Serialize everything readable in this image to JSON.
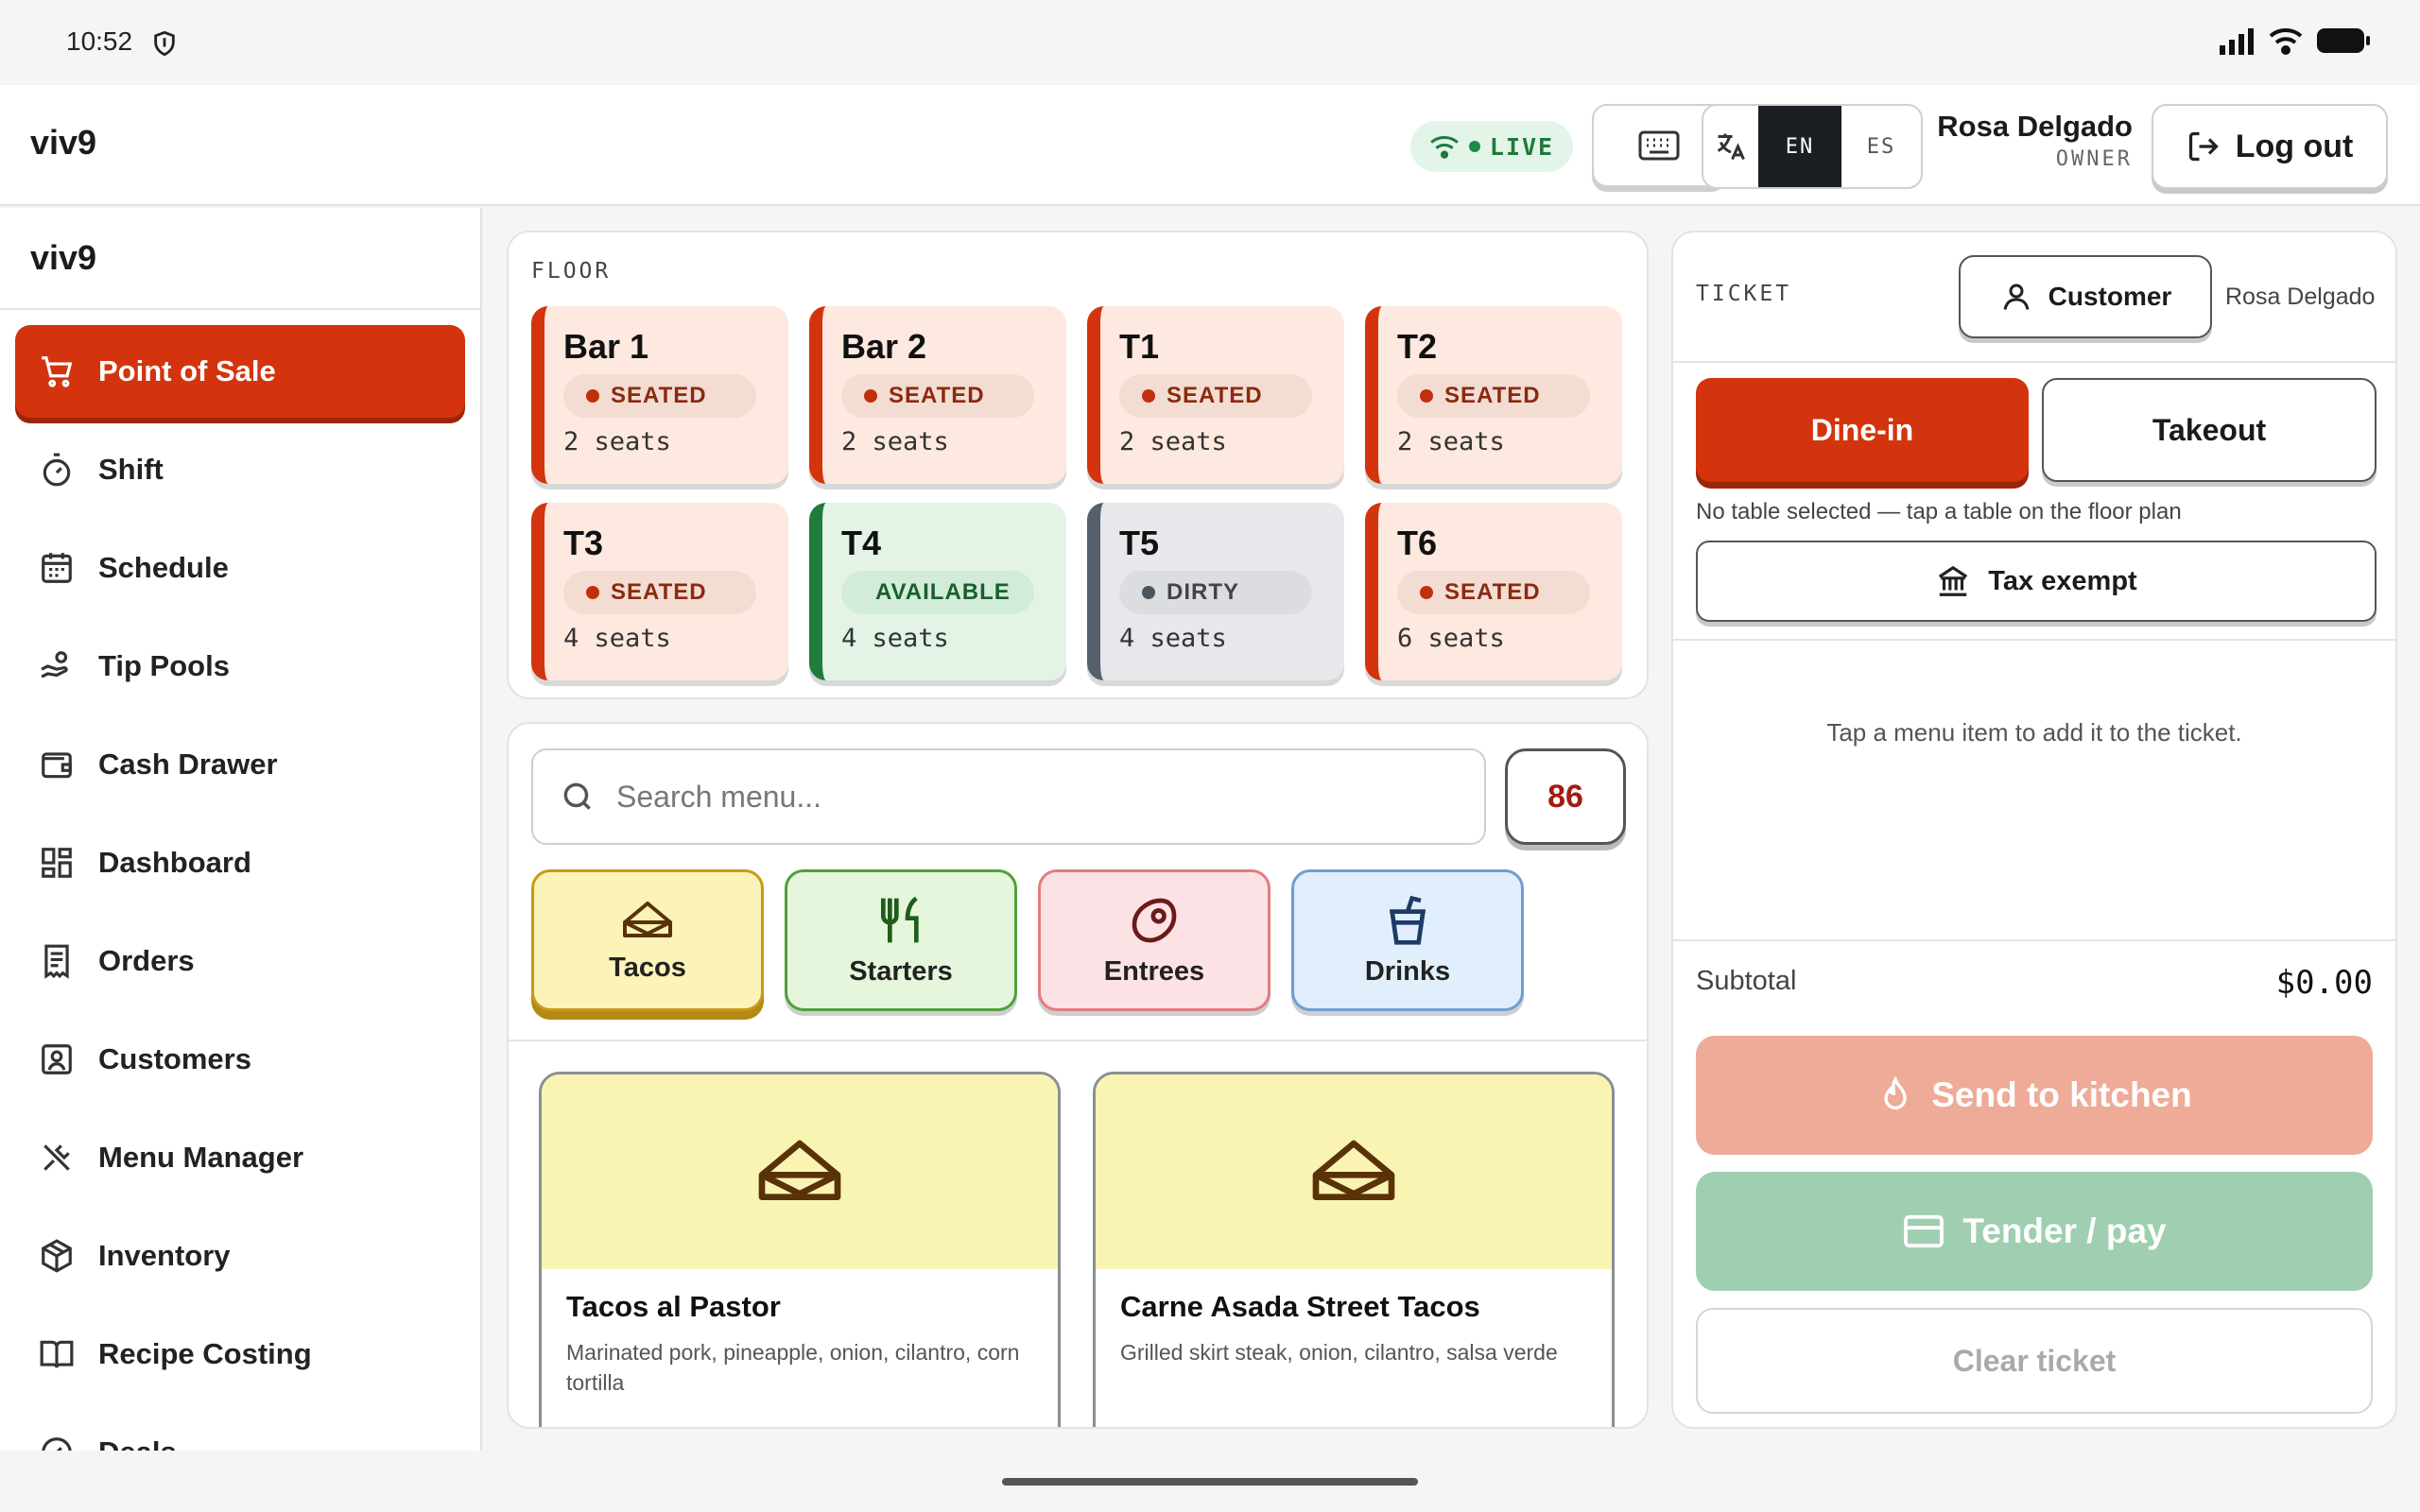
{
  "status_bar": {
    "time": "10:52"
  },
  "header": {
    "brand": "viv9",
    "live_label": "LIVE",
    "lang_en": "EN",
    "lang_es": "ES",
    "user_name": "Rosa Delgado",
    "user_role": "OWNER",
    "logout_label": "Log out"
  },
  "sidebar": {
    "brand": "viv9",
    "items": [
      {
        "label": "Point of Sale",
        "icon": "cart-icon",
        "active": true
      },
      {
        "label": "Shift",
        "icon": "stopwatch-icon"
      },
      {
        "label": "Schedule",
        "icon": "calendar-icon"
      },
      {
        "label": "Tip Pools",
        "icon": "hand-coins-icon"
      },
      {
        "label": "Cash Drawer",
        "icon": "wallet-icon"
      },
      {
        "label": "Dashboard",
        "icon": "dashboard-grid-icon"
      },
      {
        "label": "Orders",
        "icon": "receipt-icon"
      },
      {
        "label": "Customers",
        "icon": "contact-card-icon"
      },
      {
        "label": "Menu Manager",
        "icon": "utensils-crossed-icon"
      },
      {
        "label": "Inventory",
        "icon": "package-icon"
      },
      {
        "label": "Recipe Costing",
        "icon": "book-icon"
      },
      {
        "label": "Deals",
        "icon": "tag-icon"
      }
    ]
  },
  "floor": {
    "label": "FLOOR",
    "tables": [
      {
        "name": "Bar 1",
        "status": "SEATED",
        "seats": "2 seats"
      },
      {
        "name": "Bar 2",
        "status": "SEATED",
        "seats": "2 seats"
      },
      {
        "name": "T1",
        "status": "SEATED",
        "seats": "2 seats"
      },
      {
        "name": "T2",
        "status": "SEATED",
        "seats": "2 seats"
      },
      {
        "name": "T3",
        "status": "SEATED",
        "seats": "4 seats"
      },
      {
        "name": "T4",
        "status": "AVAILABLE",
        "seats": "4 seats"
      },
      {
        "name": "T5",
        "status": "DIRTY",
        "seats": "4 seats"
      },
      {
        "name": "T6",
        "status": "SEATED",
        "seats": "6 seats"
      }
    ]
  },
  "menu": {
    "search_placeholder": "Search menu...",
    "eighty_six": "86",
    "categories": [
      {
        "label": "Tacos",
        "icon": "taco-icon",
        "selected": true
      },
      {
        "label": "Starters",
        "icon": "fork-knife-icon"
      },
      {
        "label": "Entrees",
        "icon": "steak-icon"
      },
      {
        "label": "Drinks",
        "icon": "cup-straw-icon"
      }
    ],
    "items": [
      {
        "name": "Tacos al Pastor",
        "description": "Marinated pork, pineapple, onion, cilantro, corn tortilla",
        "icon": "taco-icon"
      },
      {
        "name": "Carne Asada Street Tacos",
        "description": "Grilled skirt steak, onion, cilantro, salsa verde",
        "icon": "taco-icon"
      }
    ]
  },
  "ticket": {
    "label": "TICKET",
    "customer_button": "Customer",
    "customer_name": "Rosa Delgado",
    "dine_in": "Dine-in",
    "takeout": "Takeout",
    "no_table": "No table selected — tap a table on the floor plan",
    "tax_exempt": "Tax exempt",
    "empty_hint": "Tap a menu item to add it to the ticket.",
    "subtotal_label": "Subtotal",
    "subtotal_value": "$0.00",
    "send_label": "Send to kitchen",
    "tender_label": "Tender / pay",
    "clear_label": "Clear ticket"
  },
  "colors": {
    "accent": "#d3340d",
    "seated_bg": "#fde9df",
    "available": "#1e7d3a",
    "dirty": "#56606b",
    "send_disabled": "#eeab98",
    "tender_disabled": "#9fcfb0"
  }
}
